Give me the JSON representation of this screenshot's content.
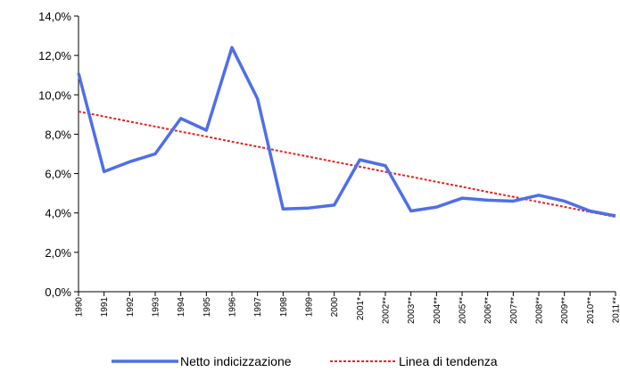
{
  "chart_data": {
    "type": "line",
    "categories": [
      "1990",
      "1991",
      "1992",
      "1993",
      "1994",
      "1995",
      "1996",
      "1997",
      "1998",
      "1999",
      "2000",
      "2001*",
      "2002**",
      "2003**",
      "2004**",
      "2005**",
      "2006**",
      "2007**",
      "2008**",
      "2009**",
      "2010**",
      "2011**"
    ],
    "series": [
      {
        "name": "Netto indicizzazione",
        "color": "#4f6fe8",
        "style": "solid",
        "values": [
          11.1,
          6.1,
          6.6,
          7.0,
          8.8,
          8.2,
          12.4,
          9.8,
          4.2,
          4.25,
          4.4,
          6.7,
          6.4,
          4.1,
          4.3,
          4.75,
          4.65,
          4.6,
          4.9,
          4.6,
          4.1,
          3.85
        ]
      },
      {
        "name": "Linea di tendenza",
        "color": "#e8231e",
        "style": "dotted",
        "values": [
          9.15,
          8.9,
          8.64,
          8.39,
          8.13,
          7.88,
          7.62,
          7.37,
          7.11,
          6.86,
          6.6,
          6.35,
          6.09,
          5.84,
          5.58,
          5.33,
          5.07,
          4.82,
          4.56,
          4.31,
          4.05,
          3.8
        ]
      }
    ],
    "ylim": [
      0,
      14
    ],
    "yticks": [
      {
        "value": 0,
        "label": "0,0%"
      },
      {
        "value": 2,
        "label": "2,0%"
      },
      {
        "value": 4,
        "label": "4,0%"
      },
      {
        "value": 6,
        "label": "6,0%"
      },
      {
        "value": 8,
        "label": "8,0%"
      },
      {
        "value": 10,
        "label": "10,0%"
      },
      {
        "value": 12,
        "label": "12,0%"
      },
      {
        "value": 14,
        "label": "14,0%"
      }
    ],
    "legend": "bottom"
  }
}
